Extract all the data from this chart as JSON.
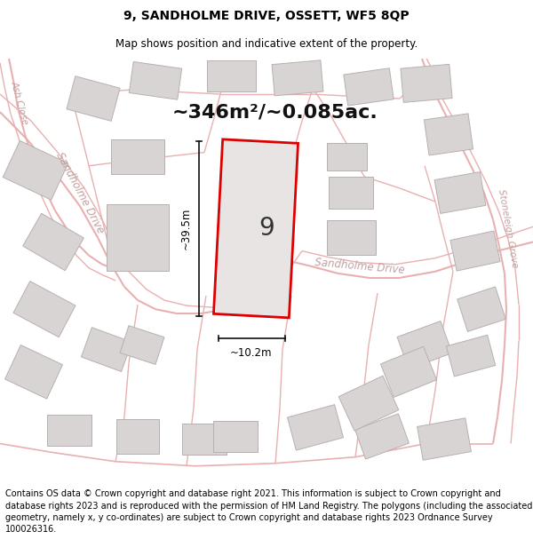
{
  "title_line1": "9, SANDHOLME DRIVE, OSSETT, WF5 8QP",
  "title_line2": "Map shows position and indicative extent of the property.",
  "area_text": "~346m²/~0.085ac.",
  "plot_number": "9",
  "dim_vertical": "~39.5m",
  "dim_horizontal": "~10.2m",
  "street_label_sandholme_left": "Sandholme Drive",
  "street_label_sandholme_top": "Sandholme Drive",
  "street_label_stoneleigh": "Stoneleigh Grove",
  "street_label_ash": "Ash Close",
  "footer_text": "Contains OS data © Crown copyright and database right 2021. This information is subject to Crown copyright and database rights 2023 and is reproduced with the permission of HM Land Registry. The polygons (including the associated geometry, namely x, y co-ordinates) are subject to Crown copyright and database rights 2023 Ordnance Survey 100026316.",
  "map_bg": "#f9f7f7",
  "plot_fill": "#e8e4e4",
  "plot_border": "#dd0000",
  "road_color": "#e8b0b0",
  "building_fill": "#d8d4d4",
  "building_border": "#b8b0b0",
  "text_color": "#000000",
  "street_text_color": "#c0a0a0",
  "dim_line_color": "#111111",
  "title_fontsize": 10,
  "subtitle_fontsize": 8.5,
  "area_fontsize": 16,
  "footer_fontsize": 7,
  "plot_number_fontsize": 20,
  "dim_fontsize": 8.5
}
